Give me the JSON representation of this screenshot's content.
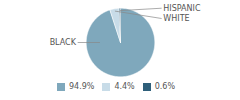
{
  "chart_data": {
    "type": "pie",
    "categories": [
      "BLACK",
      "WHITE",
      "HISPANIC"
    ],
    "values": [
      94.9,
      4.4,
      0.6
    ],
    "value_labels": [
      "94.9%",
      "4.4%",
      "0.6%"
    ],
    "colors": [
      "#7fa8bc",
      "#c8dce8",
      "#2e5f7a"
    ],
    "legend": "bottom"
  }
}
